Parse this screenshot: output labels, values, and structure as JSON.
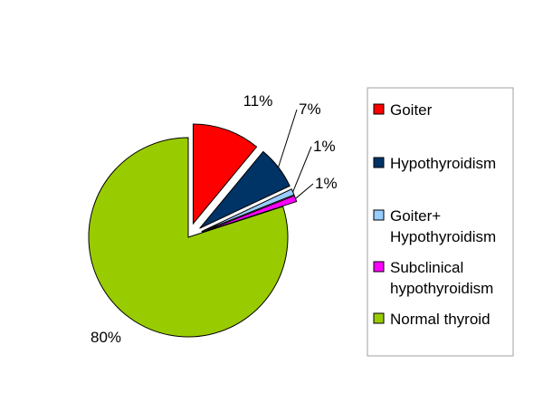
{
  "chart_data": {
    "type": "pie",
    "title": "",
    "legend_position": "right",
    "slices": [
      {
        "label": "Goiter",
        "value": 11,
        "value_label": "11%",
        "color": "#ff0000",
        "exploded": true
      },
      {
        "label": "Hypothyroidism",
        "value": 7,
        "value_label": "7%",
        "color": "#003366",
        "exploded": true
      },
      {
        "label": "Goiter+ Hypothyroidism",
        "legend_lines": [
          "Goiter+",
          "Hypothyroidism"
        ],
        "value": 1,
        "value_label": "1%",
        "color": "#99ccff",
        "exploded": true
      },
      {
        "label": "Subclinical hypothyroidism",
        "legend_lines": [
          "Subclinical",
          "hypothyroidism"
        ],
        "value": 1,
        "value_label": "1%",
        "color": "#ff00ff",
        "exploded": true
      },
      {
        "label": "Normal thyroid",
        "value": 80,
        "value_label": "80%",
        "color": "#99cc00",
        "exploded": false
      }
    ]
  }
}
